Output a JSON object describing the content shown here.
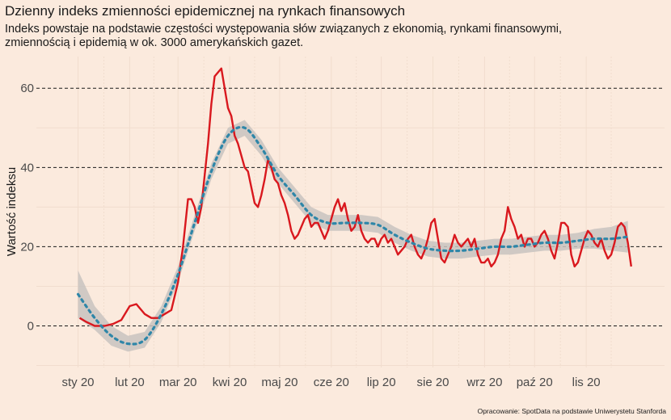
{
  "title": "Dzienny indeks zmienności epidemicznej na rynkach finansowych",
  "subtitle": "Indeks powstaje na podstawie częstości występowania słów związanych z ekonomią, rynkami finansowymi, zmiennością i epidemią w ok. 3000 amerykańskich gazet.",
  "caption": "Opracowanie: SpotData na podstawie Uniwerystetu Stanforda",
  "chart_data": {
    "type": "line",
    "title": "Dzienny indeks zmienności epidemicznej na rynkach finansowych",
    "xlabel": "",
    "ylabel": "Wartość indeksu",
    "x_ticks": [
      "sty 20",
      "lut 20",
      "mar 20",
      "kwi 20",
      "maj 20",
      "cze 20",
      "lip 20",
      "sie 20",
      "wrz 20",
      "paź 20",
      "lis 20"
    ],
    "y_ticks": [
      0,
      20,
      40,
      60
    ],
    "ylim": [
      -10.5,
      68
    ],
    "xlim": [
      -25,
      352
    ],
    "grid": "horizontal dashed",
    "colors": {
      "index": "#d9181e",
      "trend": "#2e86a8",
      "band": "#c8c3bf",
      "background": "#fbeadd"
    },
    "series": [
      {
        "style": "line",
        "x": [
          1,
          5,
          10,
          16,
          21,
          26,
          31,
          35,
          40,
          44,
          48,
          52,
          56,
          60,
          63,
          66,
          68,
          70,
          72,
          74,
          76,
          78,
          80,
          82,
          84,
          86,
          88,
          90,
          92,
          94,
          96,
          98,
          100,
          102,
          104,
          106,
          108,
          110,
          112,
          114,
          116,
          118,
          120,
          122,
          124,
          126,
          128,
          130,
          132,
          134,
          136,
          138,
          140,
          142,
          144,
          146,
          148,
          150,
          152,
          154,
          156,
          158,
          160,
          162,
          164,
          166,
          168,
          170,
          172,
          174,
          176,
          178,
          180,
          182,
          184,
          186,
          188,
          190,
          192,
          194,
          196,
          198,
          200,
          202,
          204,
          206,
          208,
          210,
          212,
          214,
          216,
          218,
          220,
          222,
          224,
          226,
          228,
          230,
          232,
          234,
          236,
          238,
          240,
          242,
          244,
          246,
          248,
          250,
          252,
          254,
          256,
          258,
          260,
          262,
          264,
          266,
          268,
          270,
          272,
          274,
          276,
          278,
          280,
          282,
          284,
          286,
          288,
          290,
          292,
          294,
          296,
          298,
          300,
          302,
          304,
          306,
          308,
          310,
          312,
          314,
          316,
          318,
          320,
          322,
          324,
          326,
          328,
          330,
          332
        ],
        "y": [
          2,
          1,
          0,
          0,
          0.5,
          1.5,
          5,
          5.5,
          3,
          2,
          2,
          3,
          4,
          11,
          20,
          32,
          32,
          30,
          26,
          30,
          38,
          46,
          56,
          63,
          64,
          65,
          60,
          55,
          53,
          48,
          46,
          43,
          40,
          39,
          35,
          31,
          30,
          33,
          37,
          42,
          40,
          37,
          36,
          33,
          31,
          28,
          24,
          22,
          23,
          25,
          27,
          28,
          25,
          26,
          26,
          24,
          22,
          24,
          27,
          30,
          32,
          29,
          31,
          27,
          24,
          25,
          28,
          24,
          22,
          21,
          22,
          22,
          20,
          22,
          23,
          21,
          22,
          20,
          18,
          19,
          20,
          22,
          23,
          20,
          18,
          17,
          19,
          22,
          26,
          27,
          22,
          17,
          16,
          18,
          20,
          23,
          21,
          20,
          21,
          22,
          20,
          22,
          18,
          16,
          16,
          17,
          15,
          16,
          18,
          22,
          24,
          30,
          27,
          25,
          22,
          23,
          20,
          22,
          22,
          20,
          21,
          23,
          24,
          22,
          19,
          17,
          21,
          26,
          26,
          25,
          18,
          15,
          16,
          19,
          22,
          24,
          23,
          21,
          20,
          22,
          19,
          17,
          18,
          21,
          25,
          26,
          25,
          21,
          15
        ]
      },
      {
        "style": "smooth",
        "x": [
          0,
          10,
          20,
          30,
          40,
          50,
          60,
          70,
          80,
          90,
          100,
          110,
          120,
          130,
          140,
          150,
          160,
          170,
          180,
          190,
          200,
          210,
          220,
          230,
          240,
          250,
          260,
          270,
          280,
          290,
          300,
          310,
          320,
          330
        ],
        "y": [
          8,
          2,
          -2.5,
          -4.5,
          -3.5,
          3,
          13,
          26,
          39,
          48,
          50,
          45,
          38,
          33,
          28,
          26,
          26,
          26,
          25.5,
          23,
          21,
          19.5,
          19,
          19,
          19.5,
          20,
          20,
          20.5,
          21,
          21,
          21.5,
          22,
          22,
          22.5
        ],
        "band": [
          6,
          3,
          2.5,
          2,
          2,
          2,
          2,
          2,
          2,
          2,
          2,
          2,
          2,
          2,
          2,
          2,
          2,
          2,
          2,
          2,
          2,
          2,
          2,
          2,
          2,
          2,
          2,
          2,
          2,
          2,
          2,
          2.5,
          3,
          4
        ]
      }
    ]
  }
}
